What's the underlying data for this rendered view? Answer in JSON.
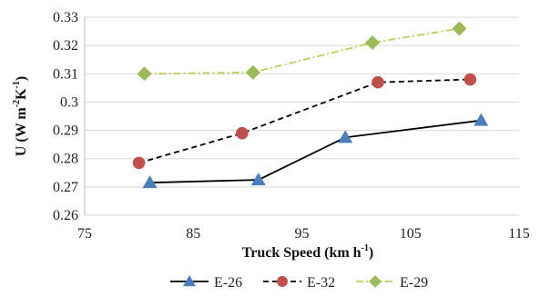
{
  "chart_data": {
    "type": "line",
    "title": "",
    "xlabel": "Truck Speed (km h",
    "xlabel_sup": "-1",
    "xlabel_end": ")",
    "ylabel": "U (W m",
    "ylabel_sup1": "-2",
    "ylabel_mid": "K",
    "ylabel_sup2": "-1",
    "ylabel_end": ")",
    "xlim": [
      75,
      115
    ],
    "ylim": [
      0.26,
      0.33
    ],
    "x_ticks": [
      "75",
      "85",
      "95",
      "105",
      "115"
    ],
    "y_ticks": [
      "0.26",
      "0.27",
      "0.28",
      "0.29",
      "0.3",
      "0.31",
      "0.32",
      "0.33"
    ],
    "grid": "horizontal",
    "legend_position": "bottom",
    "series": [
      {
        "name": "E-26",
        "color": "#000000",
        "marker_color": "#4a7ebb",
        "marker": "triangle",
        "line_style": "solid",
        "x": [
          81,
          91,
          99,
          111.5
        ],
        "y": [
          0.2715,
          0.2725,
          0.2875,
          0.2935
        ]
      },
      {
        "name": "E-32",
        "color": "#000000",
        "marker_color": "#c0504d",
        "marker": "circle",
        "line_style": "dashed",
        "x": [
          80,
          89.5,
          102,
          110.5
        ],
        "y": [
          0.2785,
          0.289,
          0.307,
          0.308
        ]
      },
      {
        "name": "E-29",
        "color": "#c4c95a",
        "marker_color": "#9bbb59",
        "marker": "diamond",
        "line_style": "dashdot",
        "x": [
          80.5,
          90.5,
          101.5,
          109.5
        ],
        "y": [
          0.31,
          0.3105,
          0.321,
          0.326
        ]
      }
    ]
  }
}
